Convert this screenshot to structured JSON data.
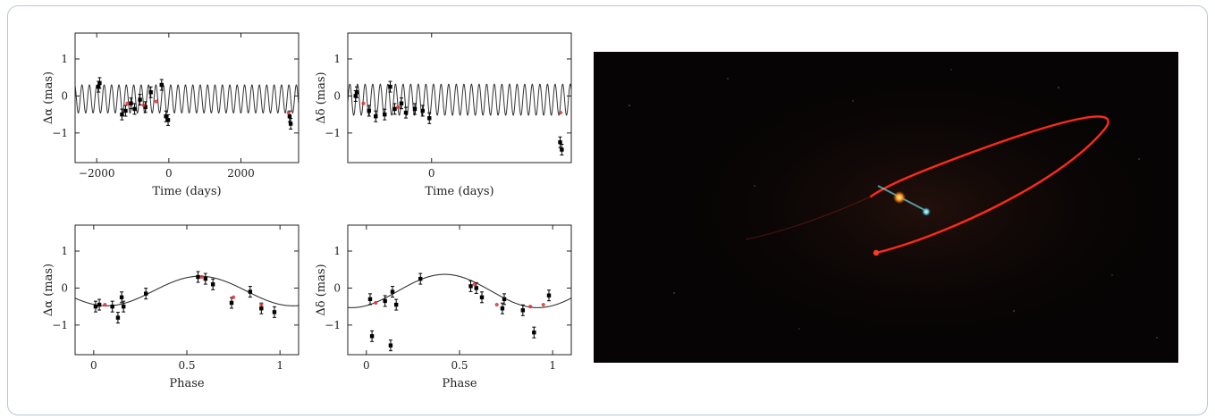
{
  "chart_data": [
    {
      "type": "scatter",
      "xlabel": "Time (days)",
      "ylabel": "Δα (mas)",
      "xlim": [
        -2600,
        3600
      ],
      "ylim": [
        -1.8,
        1.7
      ],
      "xticks": [
        -2000,
        0,
        2000
      ],
      "xtick_labels": [
        "−2000",
        "0",
        "2000"
      ],
      "yticks": [
        -1,
        0,
        1
      ],
      "ytick_labels": [
        "−1",
        "0",
        "1"
      ],
      "model": {
        "kind": "sine",
        "amplitude": 0.38,
        "offset": -0.08,
        "period": 205
      },
      "series": [
        {
          "color": "#000000",
          "points": [
            [
              -1950,
              0.25
            ],
            [
              -1920,
              0.35
            ],
            [
              -1300,
              -0.5
            ],
            [
              -1200,
              -0.4
            ],
            [
              -1050,
              -0.2
            ],
            [
              -950,
              -0.35
            ],
            [
              -800,
              -0.1
            ],
            [
              -650,
              -0.3
            ],
            [
              -500,
              0.1
            ],
            [
              -200,
              0.3
            ],
            [
              -80,
              -0.55
            ],
            [
              -20,
              -0.65
            ],
            [
              3350,
              -0.55
            ],
            [
              3380,
              -0.75
            ]
          ]
        },
        {
          "color": "#e03030",
          "points": [
            [
              -1150,
              -0.2
            ],
            [
              -700,
              -0.25
            ],
            [
              -350,
              -0.15
            ],
            [
              3320,
              -0.45
            ]
          ]
        }
      ]
    },
    {
      "type": "scatter",
      "xlabel": "Time (days)",
      "ylabel": "Δδ (mas)",
      "xlim": [
        -750,
        1250
      ],
      "ylim": [
        -1.8,
        1.7
      ],
      "xticks": [
        0
      ],
      "xtick_labels": [
        "0"
      ],
      "yticks": [
        -1,
        0,
        1
      ],
      "ytick_labels": [
        "−1",
        "0",
        "1"
      ],
      "model": {
        "kind": "sine",
        "amplitude": 0.42,
        "offset": -0.1,
        "period": 68
      },
      "series": [
        {
          "color": "#000000",
          "points": [
            [
              -680,
              0.0
            ],
            [
              -670,
              0.1
            ],
            [
              -560,
              -0.4
            ],
            [
              -500,
              -0.55
            ],
            [
              -420,
              -0.5
            ],
            [
              -370,
              0.25
            ],
            [
              -330,
              -0.35
            ],
            [
              -270,
              -0.2
            ],
            [
              -230,
              -0.45
            ],
            [
              -150,
              -0.35
            ],
            [
              -80,
              -0.4
            ],
            [
              -20,
              -0.6
            ],
            [
              1150,
              -1.25
            ],
            [
              1165,
              -1.45
            ]
          ]
        },
        {
          "color": "#e03030",
          "points": [
            [
              -610,
              -0.2
            ],
            [
              -300,
              -0.3
            ],
            [
              1155,
              -0.45
            ]
          ]
        }
      ]
    },
    {
      "type": "scatter",
      "xlabel": "Phase",
      "ylabel": "Δα (mas)",
      "xlim": [
        -0.1,
        1.1
      ],
      "ylim": [
        -1.8,
        1.7
      ],
      "xticks": [
        0,
        0.5,
        1
      ],
      "xtick_labels": [
        "0",
        "0.5",
        "1"
      ],
      "yticks": [
        -1,
        0,
        1
      ],
      "ytick_labels": [
        "−1",
        "0",
        "1"
      ],
      "model": {
        "kind": "phase",
        "amplitude": 0.4,
        "offset": -0.08,
        "peak": 0.57
      },
      "series": [
        {
          "color": "#000000",
          "points": [
            [
              0.01,
              -0.5
            ],
            [
              0.03,
              -0.45
            ],
            [
              0.1,
              -0.5
            ],
            [
              0.13,
              -0.8
            ],
            [
              0.15,
              -0.25
            ],
            [
              0.16,
              -0.5
            ],
            [
              0.28,
              -0.15
            ],
            [
              0.56,
              0.3
            ],
            [
              0.6,
              0.25
            ],
            [
              0.64,
              0.1
            ],
            [
              0.74,
              -0.4
            ],
            [
              0.84,
              -0.1
            ],
            [
              0.9,
              -0.55
            ],
            [
              0.97,
              -0.65
            ]
          ]
        },
        {
          "color": "#e03030",
          "points": [
            [
              0.06,
              -0.45
            ],
            [
              0.58,
              0.3
            ],
            [
              0.75,
              -0.25
            ],
            [
              0.9,
              -0.45
            ]
          ]
        }
      ]
    },
    {
      "type": "scatter",
      "xlabel": "Phase",
      "ylabel": "Δδ (mas)",
      "xlim": [
        -0.1,
        1.1
      ],
      "ylim": [
        -1.8,
        1.7
      ],
      "xticks": [
        0,
        0.5,
        1
      ],
      "xtick_labels": [
        "0",
        "0.5",
        "1"
      ],
      "yticks": [
        -1,
        0,
        1
      ],
      "ytick_labels": [
        "−1",
        "0",
        "1"
      ],
      "model": {
        "kind": "phase",
        "amplitude": 0.45,
        "offset": -0.08,
        "peak": 0.42
      },
      "series": [
        {
          "color": "#000000",
          "points": [
            [
              0.02,
              -0.3
            ],
            [
              0.03,
              -1.3
            ],
            [
              0.1,
              -0.35
            ],
            [
              0.13,
              -1.55
            ],
            [
              0.14,
              -0.1
            ],
            [
              0.16,
              -0.45
            ],
            [
              0.29,
              0.25
            ],
            [
              0.56,
              0.05
            ],
            [
              0.59,
              0.0
            ],
            [
              0.62,
              -0.25
            ],
            [
              0.73,
              -0.55
            ],
            [
              0.74,
              -0.3
            ],
            [
              0.84,
              -0.6
            ],
            [
              0.9,
              -1.2
            ],
            [
              0.98,
              -0.2
            ]
          ]
        },
        {
          "color": "#e03030",
          "points": [
            [
              0.05,
              -0.4
            ],
            [
              0.58,
              0.1
            ],
            [
              0.7,
              -0.45
            ],
            [
              0.88,
              -0.5
            ],
            [
              0.95,
              -0.45
            ]
          ]
        }
      ]
    }
  ]
}
